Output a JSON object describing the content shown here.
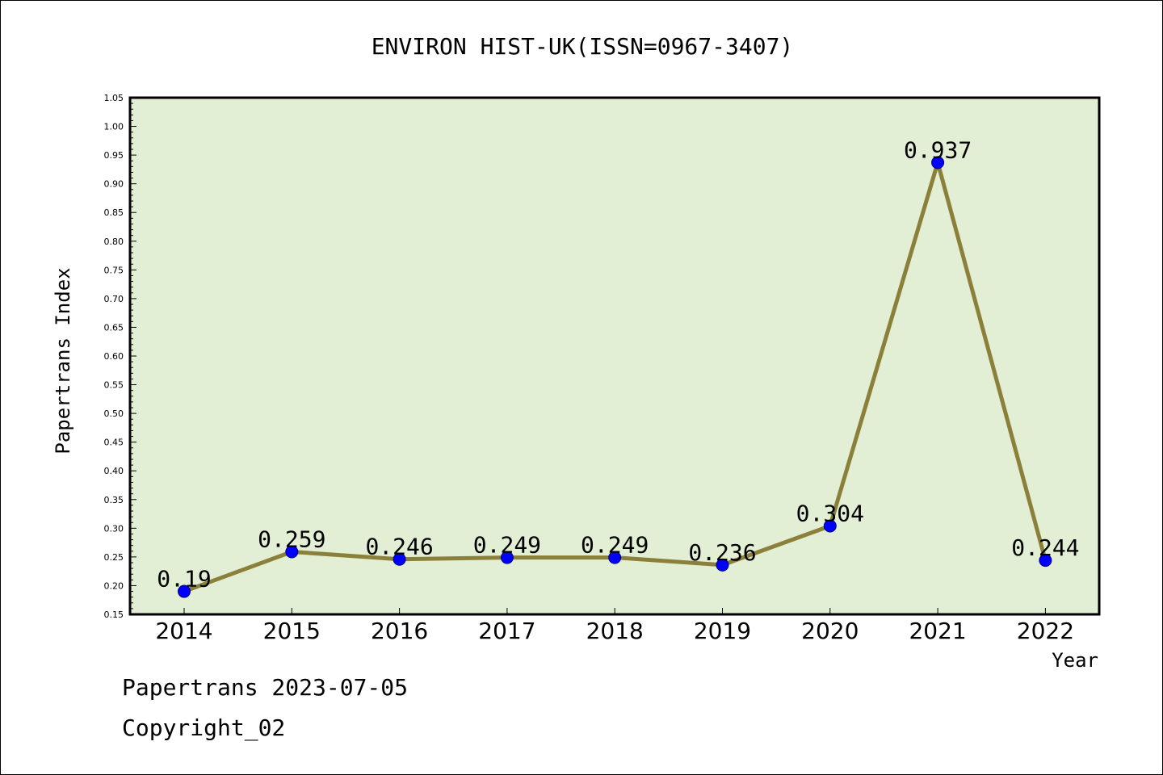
{
  "chart_data": {
    "type": "line",
    "title": "ENVIRON HIST-UK(ISSN=0967-3407)",
    "xlabel": "Year",
    "ylabel": "Papertrans Index",
    "categories": [
      "2014",
      "2015",
      "2016",
      "2017",
      "2018",
      "2019",
      "2020",
      "2021",
      "2022"
    ],
    "values": [
      0.19,
      0.259,
      0.246,
      0.249,
      0.249,
      0.236,
      0.304,
      0.937,
      0.244
    ],
    "data_labels": [
      "0.19",
      "0.259",
      "0.246",
      "0.249",
      "0.249",
      "0.236",
      "0.304",
      "0.937",
      "0.244"
    ],
    "ylim": [
      0.15,
      1.05
    ],
    "yticks": [
      "0.15",
      "0.20",
      "0.25",
      "0.30",
      "0.35",
      "0.40",
      "0.45",
      "0.50",
      "0.55",
      "0.60",
      "0.65",
      "0.70",
      "0.75",
      "0.80",
      "0.85",
      "0.90",
      "0.95",
      "1.00",
      "1.05"
    ],
    "grid": false,
    "legend": "none"
  },
  "footer": {
    "source": "Papertrans 2023-07-05",
    "copyright": "Copyright_02"
  },
  "colors": {
    "plot_background": "#e2efd5",
    "line": "#8b8039",
    "marker": "#0000ff",
    "axis": "#000000"
  }
}
